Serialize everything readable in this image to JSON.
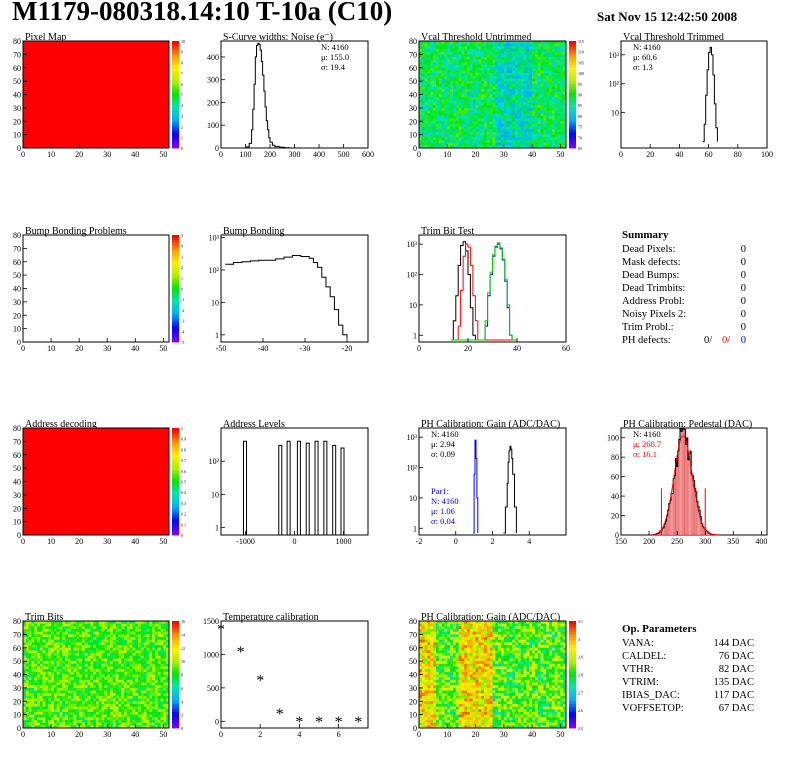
{
  "header": {
    "title": "M1179-080318.14:10 T-10a (C10)",
    "date": "Sat Nov 15 12:42:50 2008"
  },
  "colors": {
    "red": "#ff0000",
    "blue": "#0000ff",
    "green": "#00cc00",
    "black": "#000000"
  },
  "chart_data": [
    {
      "type": "heatmap",
      "title": "Pixel Map",
      "xlim": [
        0,
        52
      ],
      "ylim": [
        0,
        80
      ],
      "xticks": [
        0,
        10,
        20,
        30,
        40,
        50
      ],
      "yticks": [
        0,
        10,
        20,
        30,
        40,
        50,
        60,
        70,
        80
      ],
      "pattern": "uniform",
      "uniform_value": 10,
      "palette_ticks": [
        "10",
        "9",
        "8",
        "7",
        "6",
        "5",
        "4",
        "3",
        "2",
        "1",
        "0"
      ]
    },
    {
      "type": "line",
      "title": "S-Curve widths: Noise (e⁻)",
      "xlim": [
        0,
        600
      ],
      "ylim": [
        0,
        470
      ],
      "xticks": [
        0,
        100,
        200,
        300,
        400,
        500,
        600
      ],
      "yticks": [
        0,
        100,
        200,
        300,
        400
      ],
      "x": [
        95,
        105,
        115,
        125,
        130,
        135,
        140,
        145,
        150,
        155,
        160,
        165,
        170,
        175,
        180,
        185,
        190,
        195,
        200,
        210,
        220,
        240,
        260,
        280
      ],
      "series": [
        {
          "y": [
            0,
            5,
            20,
            80,
            170,
            280,
            400,
            450,
            460,
            455,
            430,
            380,
            320,
            250,
            180,
            120,
            80,
            45,
            25,
            12,
            6,
            3,
            1,
            0
          ]
        }
      ],
      "stats": {
        "N": "N: 4160",
        "mean": "μ: 155.0",
        "sigma": "σ: 19.4"
      }
    },
    {
      "type": "heatmap",
      "title": "Vcal Threshold Untrimmed",
      "xlim": [
        0,
        52
      ],
      "ylim": [
        0,
        80
      ],
      "xticks": [
        0,
        10,
        20,
        30,
        40,
        50
      ],
      "yticks": [
        0,
        10,
        20,
        30,
        40,
        50,
        60,
        70,
        80
      ],
      "pattern": "noise-cool",
      "palette_ticks": [
        "115",
        "110",
        "105",
        "100",
        "95",
        "90",
        "85",
        "80",
        "75",
        "70",
        "65"
      ]
    },
    {
      "type": "line",
      "title": "Vcal Threshold Trimmed",
      "log_y": true,
      "xlim": [
        0,
        100
      ],
      "ylim": [
        0.6,
        3000
      ],
      "xticks": [
        0,
        20,
        40,
        60,
        80,
        100
      ],
      "yticks": [
        10,
        100,
        1000
      ],
      "ytick_labels": [
        "10",
        "10²",
        "10³"
      ],
      "x": [
        56,
        57,
        58,
        59,
        60,
        61,
        62,
        63,
        64,
        65,
        66
      ],
      "series": [
        {
          "y": [
            1,
            4,
            40,
            300,
            1200,
            1800,
            1000,
            200,
            20,
            3,
            1
          ]
        }
      ],
      "stats": {
        "N": "N: 4160",
        "mean": "μ: 60.6",
        "sigma": "σ:   1.3"
      }
    },
    {
      "type": "heatmap",
      "title": "Bump Bonding Problems",
      "xlim": [
        0,
        52
      ],
      "ylim": [
        0,
        80
      ],
      "xticks": [
        0,
        10,
        20,
        30,
        40,
        50
      ],
      "yticks": [
        0,
        10,
        20,
        30,
        40,
        50,
        60,
        70,
        80
      ],
      "pattern": "empty",
      "palette_ticks": [
        "5",
        "4",
        "3",
        "2",
        "1",
        "0",
        "-1",
        "-2",
        "-3",
        "-4",
        "-5"
      ]
    },
    {
      "type": "line",
      "title": "Bump Bonding",
      "log_y": true,
      "xlim": [
        -50,
        -15
      ],
      "ylim": [
        0.6,
        1200
      ],
      "xticks": [
        -50,
        -40,
        -30,
        -20
      ],
      "yticks": [
        1,
        10,
        100,
        1000
      ],
      "ytick_labels": [
        "1",
        "10",
        "10²",
        "10³"
      ],
      "x": [
        -49,
        -47,
        -45,
        -43,
        -41,
        -39,
        -37,
        -35,
        -33,
        -31,
        -29,
        -28,
        -27,
        -26,
        -25,
        -24,
        -23,
        -22,
        -21,
        -20
      ],
      "series": [
        {
          "y": [
            150,
            170,
            180,
            190,
            200,
            200,
            220,
            250,
            280,
            260,
            230,
            170,
            120,
            60,
            30,
            15,
            6,
            2,
            1,
            0.8
          ]
        }
      ]
    },
    {
      "type": "line",
      "title": "Trim Bit Test",
      "log_y": true,
      "xlim": [
        0,
        60
      ],
      "ylim": [
        0.6,
        2000
      ],
      "xticks": [
        0,
        20,
        40,
        60
      ],
      "yticks": [
        1,
        10,
        100,
        1000
      ],
      "ytick_labels": [
        "1",
        "10",
        "10²",
        "10³"
      ],
      "x": [
        13,
        14,
        15,
        16,
        17,
        18,
        19,
        20,
        21,
        22,
        23,
        24,
        25,
        26,
        27,
        28,
        29,
        30,
        31,
        32,
        33,
        34,
        35,
        36,
        37,
        38,
        39,
        40
      ],
      "series": [
        {
          "name": "black",
          "color": "#000000",
          "y": [
            0.7,
            3,
            20,
            200,
            900,
            1200,
            600,
            100,
            8,
            1,
            0.7,
            0.7,
            0.7,
            0.7,
            0.7,
            0.7,
            0.7,
            0.7,
            0.7,
            0.7,
            0.7,
            0.7,
            0.7,
            0.7,
            0.7,
            0.7,
            0.7,
            0.7
          ]
        },
        {
          "name": "red",
          "color": "#ff0000",
          "y": [
            0.7,
            0.7,
            0.7,
            2,
            30,
            400,
            1000,
            800,
            200,
            20,
            3,
            0.7,
            0.7,
            0.7,
            0.7,
            0.7,
            0.7,
            0.7,
            0.7,
            0.7,
            0.7,
            0.7,
            0.7,
            0.7,
            0.7,
            0.7,
            0.7,
            0.7
          ]
        },
        {
          "name": "blue",
          "color": "#0000ff",
          "y": [
            0.7,
            0.7,
            0.7,
            0.7,
            0.7,
            0.7,
            0.7,
            0.7,
            0.7,
            0.7,
            0.7,
            0.7,
            0.7,
            0.7,
            2,
            20,
            100,
            400,
            800,
            1000,
            700,
            300,
            60,
            8,
            1,
            0.7,
            0.7,
            0.7
          ]
        },
        {
          "name": "green",
          "color": "#00cc00",
          "y": [
            0.7,
            0.7,
            0.7,
            0.7,
            0.7,
            0.7,
            0.7,
            0.7,
            0.7,
            0.7,
            0.7,
            0.7,
            0.7,
            0.7,
            3,
            25,
            120,
            450,
            850,
            1100,
            750,
            320,
            70,
            10,
            1,
            0.7,
            0.7,
            0.7
          ]
        }
      ]
    },
    {
      "type": "heatmap",
      "title": "Address decoding",
      "xlim": [
        0,
        52
      ],
      "ylim": [
        0,
        80
      ],
      "xticks": [
        0,
        10,
        20,
        30,
        40,
        50
      ],
      "yticks": [
        0,
        10,
        20,
        30,
        40,
        50,
        60,
        70,
        80
      ],
      "pattern": "uniform",
      "uniform_value": 1,
      "palette_ticks": [
        "1",
        "0.9",
        "0.8",
        "0.7",
        "0.6",
        "0.5",
        "0.4",
        "0.3",
        "0.2",
        "0.1",
        "0"
      ]
    },
    {
      "type": "line",
      "title": "Address Levels",
      "log_y": true,
      "xlim": [
        -1500,
        1500
      ],
      "ylim": [
        0.6,
        1000
      ],
      "xticks": [
        -1000,
        0,
        1000
      ],
      "yticks": [
        1,
        10,
        100
      ],
      "ytick_labels": [
        "1",
        "10",
        "10²"
      ],
      "peaks": [
        -1000,
        -280,
        -110,
        100,
        280,
        460,
        640,
        820,
        990
      ],
      "peak_heights": [
        400,
        300,
        400,
        400,
        350,
        400,
        400,
        300,
        250
      ]
    },
    {
      "type": "line",
      "title": "PH Calibration: Gain (ADC/DAC)",
      "log_y": true,
      "xlim": [
        -2,
        6
      ],
      "ylim": [
        0.6,
        2000
      ],
      "xticks": [
        -2,
        0,
        2,
        4
      ],
      "yticks": [
        1,
        10,
        100,
        1000
      ],
      "ytick_labels": [
        "1",
        "10",
        "10²",
        "10³"
      ],
      "series": [
        {
          "name": "black",
          "color": "#000000",
          "x": [
            2.6,
            2.7,
            2.8,
            2.85,
            2.9,
            2.95,
            3.0,
            3.05,
            3.1,
            3.2,
            3.3
          ],
          "y": [
            0.7,
            5,
            30,
            150,
            350,
            500,
            400,
            200,
            60,
            5,
            0.7
          ]
        },
        {
          "name": "blue",
          "color": "#0000ff",
          "x": [
            0.95,
            1.0,
            1.05,
            1.1,
            1.15,
            1.2
          ],
          "y": [
            0.7,
            60,
            800,
            200,
            10,
            0.7
          ]
        }
      ],
      "stats": {
        "N": "N: 4160",
        "mean": "μ: 2.94",
        "sigma": "σ: 0.09"
      },
      "stats2": {
        "title": "Par1:",
        "N": "N: 4160",
        "mean": "μ: 1.06",
        "sigma": "σ: 0.04"
      }
    },
    {
      "type": "bar",
      "title": "PH Calibration: Pedestal (DAC)",
      "xlim": [
        150,
        410
      ],
      "ylim": [
        0,
        110
      ],
      "xticks": [
        150,
        200,
        250,
        300,
        350,
        400
      ],
      "yticks": [
        0,
        20,
        40,
        60,
        80,
        100
      ],
      "mean": 260.7,
      "sigma": 16.1,
      "peak": 102,
      "fit_bounds": [
        222,
        300
      ],
      "stats": {
        "N": "N: 4160",
        "mean": "μ: 260.7",
        "sigma": "σ: 16.1"
      }
    },
    {
      "type": "heatmap",
      "title": "Trim Bits",
      "xlim": [
        0,
        52
      ],
      "ylim": [
        0,
        80
      ],
      "xticks": [
        0,
        10,
        20,
        30,
        40,
        50
      ],
      "yticks": [
        0,
        10,
        20,
        30,
        40,
        50,
        60,
        70,
        80
      ],
      "pattern": "noise-green",
      "palette_ticks": [
        "16",
        "14",
        "12",
        "10",
        "8",
        "6",
        "4",
        "2",
        "0"
      ]
    },
    {
      "type": "scatter",
      "title": "Temperature calibration",
      "xlim": [
        0,
        7.5
      ],
      "ylim": [
        -100,
        1500
      ],
      "xticks": [
        0,
        2,
        4,
        6
      ],
      "yticks": [
        0,
        500,
        1000,
        1500
      ],
      "x": [
        0,
        1,
        2,
        3,
        4,
        5,
        6,
        7
      ],
      "y": [
        1370,
        1040,
        610,
        110,
        -10,
        -10,
        -10,
        -10
      ]
    },
    {
      "type": "heatmap",
      "title": "PH Calibration: Gain (ADC/DAC)",
      "xlim": [
        0,
        52
      ],
      "ylim": [
        0,
        80
      ],
      "xticks": [
        0,
        10,
        20,
        30,
        40,
        50
      ],
      "yticks": [
        0,
        10,
        20,
        30,
        40,
        50,
        60,
        70,
        80
      ],
      "pattern": "gain-warm",
      "palette_ticks": [
        "3.1",
        "3",
        "2.9",
        "2.8",
        "2.7",
        "2.6",
        "2.5"
      ]
    }
  ],
  "summary": {
    "title": "Summary",
    "rows": [
      {
        "label": "Dead Pixels:",
        "value": "0"
      },
      {
        "label": "Mask defects:",
        "value": "0"
      },
      {
        "label": "Dead Bumps:",
        "value": "0"
      },
      {
        "label": "Dead Trimbits:",
        "value": "0"
      },
      {
        "label": "Address Probl:",
        "value": "0"
      },
      {
        "label": "Noisy Pixels 2:",
        "value": "0"
      },
      {
        "label": "Trim Probl.:",
        "value": "0"
      }
    ],
    "ph_label": "PH defects:",
    "ph_values": [
      "0/",
      "0/",
      "0"
    ]
  },
  "op_params": {
    "title": "Op. Parameters",
    "rows": [
      {
        "label": "VANA:",
        "value": "144 DAC"
      },
      {
        "label": "CALDEL:",
        "value": "76 DAC"
      },
      {
        "label": "VTHR:",
        "value": "82 DAC"
      },
      {
        "label": "VTRIM:",
        "value": "135 DAC"
      },
      {
        "label": "IBIAS_DAC:",
        "value": "117 DAC"
      },
      {
        "label": "VOFFSETOP:",
        "value": "67 DAC"
      }
    ]
  }
}
